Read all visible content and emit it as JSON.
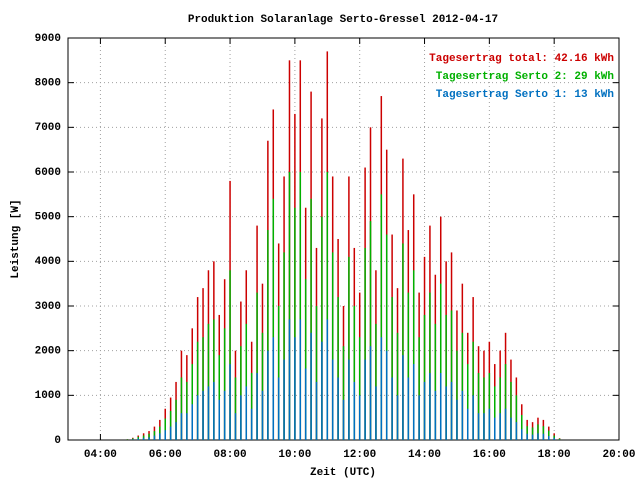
{
  "chart_data": {
    "type": "bar",
    "title": "Produktion Solaranlage Serto-Gressel 2012-04-17",
    "xlabel": "Zeit (UTC)",
    "ylabel": "Leistung [W]",
    "legend": "upper right",
    "grid": true,
    "xlim": [
      "03:00",
      "20:00"
    ],
    "xticks": [
      "04:00",
      "06:00",
      "08:00",
      "10:00",
      "12:00",
      "14:00",
      "16:00",
      "18:00",
      "20:00"
    ],
    "ylim": [
      0,
      9000
    ],
    "yticks": [
      0,
      1000,
      2000,
      3000,
      4000,
      5000,
      6000,
      7000,
      8000,
      9000
    ],
    "x": [
      "04:50",
      "05:00",
      "05:10",
      "05:20",
      "05:30",
      "05:40",
      "05:50",
      "06:00",
      "06:10",
      "06:20",
      "06:30",
      "06:40",
      "06:50",
      "07:00",
      "07:10",
      "07:20",
      "07:30",
      "07:40",
      "07:50",
      "08:00",
      "08:10",
      "08:20",
      "08:30",
      "08:40",
      "08:50",
      "09:00",
      "09:10",
      "09:20",
      "09:30",
      "09:40",
      "09:50",
      "10:00",
      "10:10",
      "10:20",
      "10:30",
      "10:40",
      "10:50",
      "11:00",
      "11:10",
      "11:20",
      "11:30",
      "11:40",
      "11:50",
      "12:00",
      "12:10",
      "12:20",
      "12:30",
      "12:40",
      "12:50",
      "13:00",
      "13:10",
      "13:20",
      "13:30",
      "13:40",
      "13:50",
      "14:00",
      "14:10",
      "14:20",
      "14:30",
      "14:40",
      "14:50",
      "15:00",
      "15:10",
      "15:20",
      "15:30",
      "15:40",
      "15:50",
      "16:00",
      "16:10",
      "16:20",
      "16:30",
      "16:40",
      "16:50",
      "17:00",
      "17:10",
      "17:20",
      "17:30",
      "17:40",
      "17:50",
      "18:00",
      "18:10"
    ],
    "series": [
      {
        "name": "Tagesertrag total: 42.16 kWh",
        "color": "#cc0000",
        "values": [
          20,
          50,
          100,
          150,
          200,
          300,
          450,
          700,
          950,
          1300,
          2000,
          1900,
          2500,
          3200,
          3400,
          3800,
          4000,
          2800,
          3600,
          5800,
          2000,
          3100,
          3800,
          2200,
          4800,
          3500,
          6700,
          7400,
          4400,
          5900,
          8500,
          7300,
          8500,
          5200,
          7800,
          4300,
          7200,
          8700,
          5900,
          4500,
          3000,
          5900,
          4300,
          3300,
          6100,
          7000,
          3800,
          7700,
          6500,
          4600,
          3400,
          6300,
          4700,
          5500,
          3300,
          4100,
          4800,
          3700,
          5000,
          4000,
          4200,
          2900,
          3500,
          2400,
          3200,
          2100,
          2000,
          2200,
          1700,
          2000,
          2400,
          1800,
          1400,
          800,
          450,
          400,
          500,
          450,
          300,
          150,
          40
        ]
      },
      {
        "name": "Tagesertrag Serto 2: 29 kWh",
        "color": "#00b000",
        "values": [
          15,
          35,
          70,
          100,
          140,
          200,
          300,
          480,
          650,
          900,
          1400,
          1300,
          1700,
          2200,
          2300,
          2600,
          2700,
          1900,
          2500,
          3800,
          1400,
          2100,
          2600,
          1500,
          3300,
          2400,
          4700,
          5400,
          3000,
          4200,
          6000,
          5200,
          6000,
          3600,
          5400,
          3000,
          5000,
          6000,
          4200,
          3200,
          2100,
          4100,
          3000,
          2300,
          4300,
          4900,
          2600,
          5500,
          4600,
          3200,
          2400,
          4400,
          3300,
          3800,
          2300,
          2800,
          3300,
          2600,
          3500,
          2800,
          2900,
          2000,
          2400,
          1700,
          2200,
          1500,
          1400,
          1500,
          1200,
          1400,
          1700,
          1300,
          1000,
          560,
          310,
          280,
          350,
          310,
          210,
          100,
          30
        ]
      },
      {
        "name": "Tagesertrag Serto 1: 13 kWh",
        "color": "#0070c0",
        "values": [
          5,
          15,
          30,
          50,
          60,
          100,
          150,
          220,
          300,
          400,
          600,
          600,
          800,
          1000,
          1100,
          1200,
          1300,
          900,
          1100,
          1700,
          600,
          1000,
          1200,
          700,
          1500,
          1100,
          2000,
          2300,
          1400,
          1800,
          2700,
          2300,
          2700,
          1600,
          2400,
          1300,
          2200,
          2700,
          1800,
          1400,
          900,
          1800,
          1300,
          1000,
          1800,
          2100,
          1200,
          2300,
          2000,
          1400,
          1000,
          1900,
          1400,
          1700,
          1000,
          1300,
          1500,
          1100,
          1500,
          1200,
          1300,
          900,
          1100,
          700,
          1000,
          600,
          600,
          700,
          500,
          600,
          700,
          500,
          400,
          240,
          140,
          120,
          150,
          140,
          90,
          50,
          10
        ]
      }
    ]
  }
}
